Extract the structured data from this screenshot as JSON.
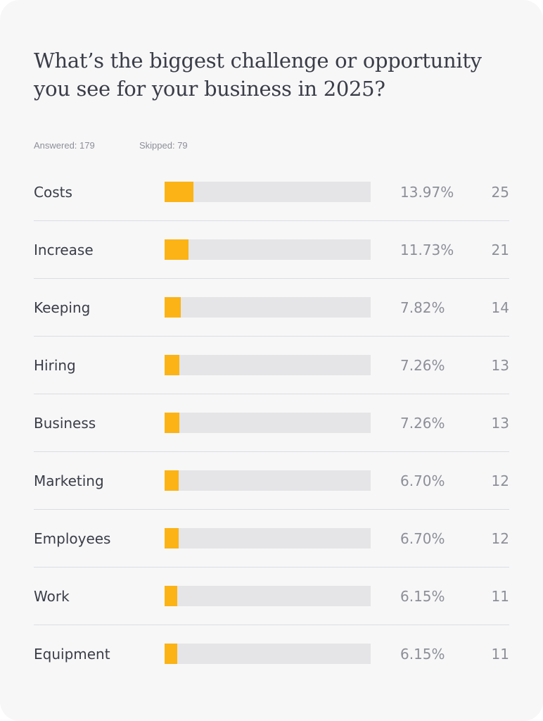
{
  "survey": {
    "question": "What’s the biggest challenge or opportunity you see for your business in 2025?",
    "answered": "Answered: 179",
    "skipped": "Skipped: 79"
  },
  "colors": {
    "bar": "#fbb315",
    "track": "#e5e5e7",
    "background": "#f7f7f8"
  },
  "chart_data": {
    "type": "bar",
    "orientation": "horizontal",
    "title": "What’s the biggest challenge or opportunity you see for your business in 2025?",
    "categories": [
      "Costs",
      "Increase",
      "Keeping",
      "Hiring",
      "Business",
      "Marketing",
      "Employees",
      "Work",
      "Equipment"
    ],
    "values": [
      13.97,
      11.73,
      7.82,
      7.26,
      7.26,
      6.7,
      6.7,
      6.15,
      6.15
    ],
    "percent_labels": [
      "13.97%",
      "11.73%",
      "7.82%",
      "7.26%",
      "7.26%",
      "6.70%",
      "6.70%",
      "6.15%",
      "6.15%"
    ],
    "counts": [
      25,
      21,
      14,
      13,
      13,
      12,
      12,
      11,
      11
    ],
    "xlim": [
      0,
      100
    ],
    "grid": false,
    "legend": "none"
  }
}
